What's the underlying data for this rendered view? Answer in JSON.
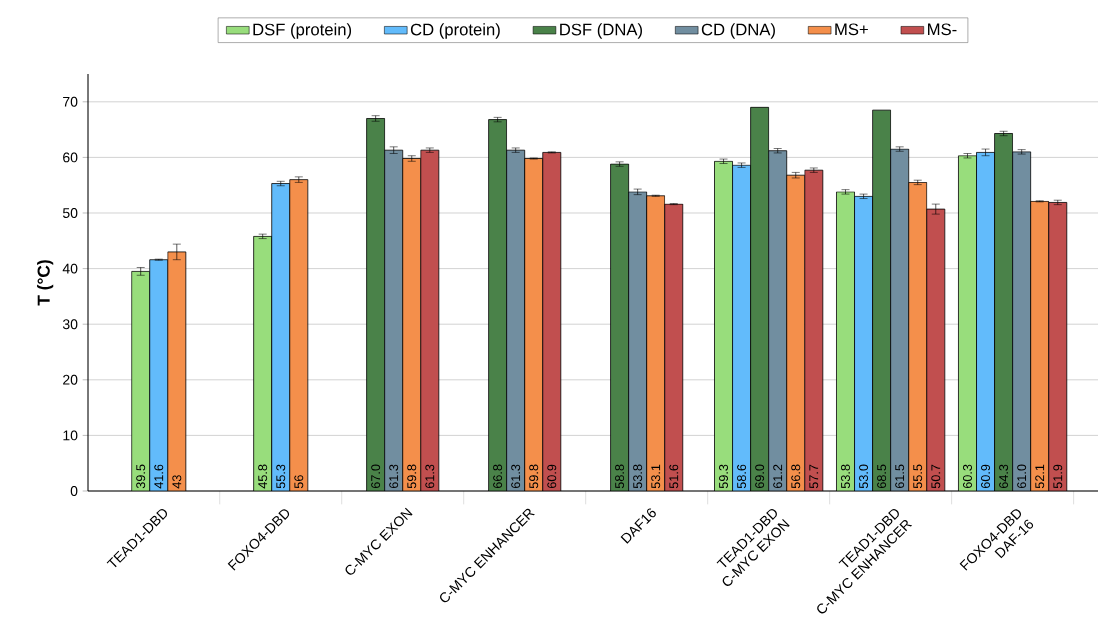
{
  "chart_data": {
    "type": "bar",
    "ylabel": "T (°C)",
    "categories": [
      "TEAD1-DBD",
      "FOXO4-DBD",
      "C-MYC EXON",
      "C-MYC ENHANCER",
      "DAF16",
      "TEAD1-DBD\nC-MYC EXON",
      "TEAD1-DBD\nC-MYC ENHANCER",
      "FOXO4-DBD\nDAF-16"
    ],
    "series": [
      {
        "name": "DSF (protein)",
        "color": "#98dd7c",
        "values": [
          39.5,
          45.8,
          null,
          null,
          null,
          59.3,
          53.8,
          60.3
        ],
        "errors": [
          0.7,
          0.4,
          null,
          null,
          null,
          0.4,
          0.4,
          0.4
        ],
        "value_labels": [
          "39.5",
          "45.8",
          null,
          null,
          null,
          "59.3",
          "53.8",
          "60.3"
        ]
      },
      {
        "name": "CD (protein)",
        "color": "#62bbfb",
        "values": [
          41.6,
          55.3,
          null,
          null,
          null,
          58.6,
          53.0,
          60.9
        ],
        "errors": [
          0.1,
          0.4,
          null,
          null,
          null,
          0.4,
          0.4,
          0.6
        ],
        "value_labels": [
          "41.6",
          "55.3",
          null,
          null,
          null,
          "58.6",
          "53.0",
          "60.9"
        ]
      },
      {
        "name": "DSF (DNA)",
        "color": "#4a8249",
        "values": [
          null,
          null,
          67.0,
          66.8,
          58.8,
          69.0,
          68.5,
          64.3
        ],
        "errors": [
          null,
          null,
          0.5,
          0.4,
          0.4,
          null,
          null,
          0.4
        ],
        "value_labels": [
          null,
          null,
          "67.0",
          "66.8",
          "58.8",
          "69.0",
          "68.5",
          "64.3"
        ]
      },
      {
        "name": "CD (DNA)",
        "color": "#718ea0",
        "values": [
          null,
          null,
          61.3,
          61.3,
          53.8,
          61.2,
          61.5,
          61.0
        ],
        "errors": [
          null,
          null,
          0.6,
          0.4,
          0.5,
          0.4,
          0.4,
          0.4
        ],
        "value_labels": [
          null,
          null,
          "61.3",
          "61.3",
          "53.8",
          "61.2",
          "61.5",
          "61.0"
        ]
      },
      {
        "name": "MS+",
        "color": "#f48f4b",
        "values": [
          43,
          56,
          59.8,
          59.8,
          53.1,
          56.8,
          55.5,
          52.1
        ],
        "errors": [
          1.4,
          0.5,
          0.5,
          0.1,
          0.1,
          0.5,
          0.4,
          0.1
        ],
        "value_labels": [
          "43",
          "56",
          "59.8",
          "59.8",
          "53.1",
          "56.8",
          "55.5",
          "52.1"
        ]
      },
      {
        "name": "MS-",
        "color": "#c14f4f",
        "values": [
          null,
          null,
          61.3,
          60.9,
          51.6,
          57.7,
          50.7,
          51.9
        ],
        "errors": [
          null,
          null,
          0.4,
          0.1,
          0.1,
          0.4,
          0.9,
          0.4
        ],
        "value_labels": [
          null,
          null,
          "61.3",
          "60.9",
          "51.6",
          "57.7",
          "50.7",
          "51.9"
        ]
      }
    ],
    "ylim": [
      0,
      75
    ],
    "yticks": [
      0,
      10,
      20,
      30,
      40,
      50,
      60,
      70
    ],
    "grid": "y",
    "legend": "top"
  }
}
